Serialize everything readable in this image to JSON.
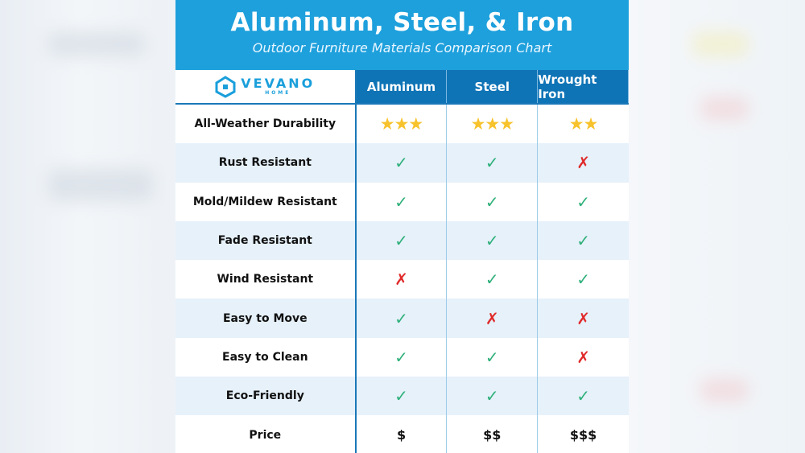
{
  "header": {
    "title": "Aluminum, Steel, & Iron",
    "subtitle": "Outdoor Furniture Materials Comparison Chart"
  },
  "logo": {
    "name": "VEVANO",
    "tagline": "HOME"
  },
  "colors": {
    "header_blue": "#1ea0dc",
    "column_header_blue": "#0f74b6",
    "check": "#2fb07a",
    "cross": "#e02b2b",
    "star": "#f7c22b"
  },
  "columns": [
    "Aluminum",
    "Steel",
    "Wrought Iron"
  ],
  "rows": [
    {
      "label": "All-Weather Durability",
      "values": [
        "★★★",
        "★★★",
        "★★"
      ],
      "type": "stars"
    },
    {
      "label": "Rust Resistant",
      "values": [
        "✓",
        "✓",
        "✗"
      ]
    },
    {
      "label": "Mold/Mildew Resistant",
      "values": [
        "✓",
        "✓",
        "✓"
      ]
    },
    {
      "label": "Fade Resistant",
      "values": [
        "✓",
        "✓",
        "✓"
      ]
    },
    {
      "label": "Wind Resistant",
      "values": [
        "✗",
        "✓",
        "✓"
      ]
    },
    {
      "label": "Easy to Move",
      "values": [
        "✓",
        "✗",
        "✗"
      ]
    },
    {
      "label": "Easy to Clean",
      "values": [
        "✓",
        "✓",
        "✗"
      ]
    },
    {
      "label": "Eco-Friendly",
      "values": [
        "✓",
        "✓",
        "✓"
      ]
    },
    {
      "label": "Price",
      "values": [
        "$",
        "$$",
        "$$$"
      ],
      "type": "price"
    }
  ]
}
